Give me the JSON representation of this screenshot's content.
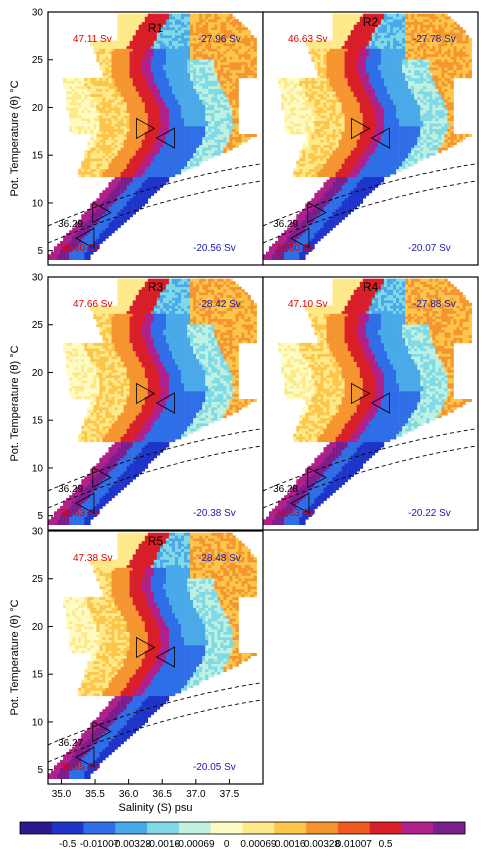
{
  "chart_data": {
    "type": "heatmap",
    "xlabel": "Salinity (S) psu",
    "ylabel": "Pot. Temperature (θ) °C",
    "xlim": [
      34.8,
      38.0
    ],
    "ylim": [
      3.5,
      30
    ],
    "xticks": [
      "35.0",
      "35.5",
      "36.0",
      "36.5",
      "37.0",
      "37.5"
    ],
    "yticks": [
      "5",
      "10",
      "15",
      "20",
      "25",
      "30"
    ],
    "colorbar": {
      "labels": [
        "-0.5",
        "-0.01007",
        "-0.00328",
        "-0.0016",
        "-0.00069",
        "0",
        "0.00069",
        "0.0016",
        "0.00328",
        "0.01007",
        "0.5"
      ],
      "colors": [
        "#2a1a8a",
        "#1f35c9",
        "#2f6ee6",
        "#4aa9e8",
        "#7fd9e6",
        "#bff0e0",
        "#fdfbc4",
        "#fde98a",
        "#fbc64a",
        "#f59530",
        "#ef5a1e",
        "#d81e28",
        "#b0208a",
        "#7a1e8e"
      ]
    },
    "panels": [
      {
        "name": "R1",
        "positive_sv": "47.11 Sv",
        "negative_sv": "-27.96 Sv",
        "lower_positive_sv": "36.60 Sv",
        "lower_negative_sv": "-20.56 Sv",
        "isopycnal_label": "36.29"
      },
      {
        "name": "R2",
        "positive_sv": "46.63 Sv",
        "negative_sv": "-27.78 Sv",
        "lower_positive_sv": "36.80 Sv",
        "lower_negative_sv": "-20.07 Sv",
        "isopycnal_label": "36.29"
      },
      {
        "name": "R3",
        "positive_sv": "47.66 Sv",
        "negative_sv": "-28.42 Sv",
        "lower_positive_sv": "36.63 Sv",
        "lower_negative_sv": "-20.38 Sv",
        "isopycnal_label": "36.29"
      },
      {
        "name": "R4",
        "positive_sv": "47.10 Sv",
        "negative_sv": "-27.88 Sv",
        "lower_positive_sv": "36.83 Sv",
        "lower_negative_sv": "-20.22 Sv",
        "isopycnal_label": "36.28"
      },
      {
        "name": "R5",
        "positive_sv": "47.38 Sv",
        "negative_sv": "-28.48 Sv",
        "lower_positive_sv": "36.85 Sv",
        "lower_negative_sv": "-20.05 Sv",
        "isopycnal_label": "36.27"
      }
    ]
  }
}
